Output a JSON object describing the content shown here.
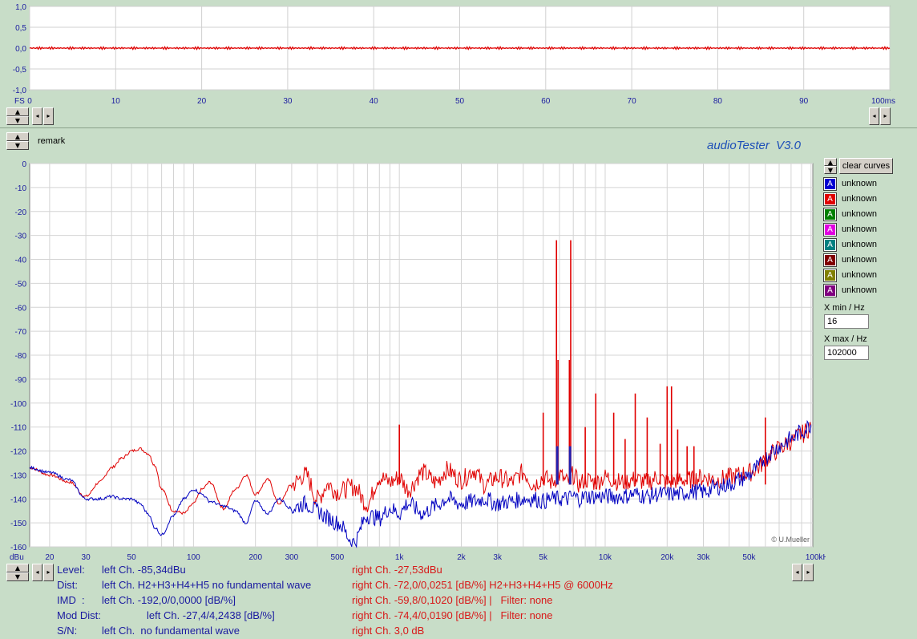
{
  "scope": {
    "y_ticks": [
      "1,0",
      "0,5",
      "0,0",
      "-0,5",
      "-1,0"
    ],
    "x_ticks": [
      "0",
      "10",
      "20",
      "30",
      "40",
      "50",
      "60",
      "70",
      "80",
      "90",
      "100ms"
    ],
    "unit_label": "FS"
  },
  "remark_label": "remark",
  "app_title": "audioTester  V3.0",
  "clear_curves_label": "clear curves",
  "legend": [
    {
      "name": "unknown",
      "color": "#0000d0"
    },
    {
      "name": "unknown",
      "color": "#e00000"
    },
    {
      "name": "unknown",
      "color": "#008000"
    },
    {
      "name": "unknown",
      "color": "#e000e0"
    },
    {
      "name": "unknown",
      "color": "#008080"
    },
    {
      "name": "unknown",
      "color": "#800000"
    },
    {
      "name": "unknown",
      "color": "#808000"
    },
    {
      "name": "unknown",
      "color": "#800080"
    }
  ],
  "legend_glyph": "A",
  "xmin_label": "X min / Hz",
  "xmin_value": "16",
  "xmax_label": "X max / Hz",
  "xmax_value": "102000",
  "copyright": "© U.Mueller",
  "stats": {
    "level_label": "Level:",
    "level_left": "left Ch. -85,34dBu",
    "level_right": "right Ch. -27,53dBu",
    "dist_label": "Dist:",
    "dist_left": "left Ch. H2+H3+H4+H5 no fundamental wave",
    "dist_right": "right Ch. -72,0/0,0251 [dB/%] H2+H3+H4+H5 @ 6000Hz",
    "imd_label": "IMD  :",
    "imd_left": "left Ch. -192,0/0,0000 [dB/%]",
    "imd_right": "right Ch. -59,8/0,1020 [dB/%] |   Filter: none",
    "mod_label": "Mod Dist:",
    "mod_left": "left Ch. -27,4/4,2438 [dB/%]",
    "mod_right": "right Ch. -74,4/0,0190 [dB/%] |   Filter: none",
    "sn_label": "S/N:",
    "sn_left": "left Ch.  no fundamental wave",
    "sn_right": "right Ch. 3,0 dB"
  },
  "chart_data": [
    {
      "type": "line",
      "title": "",
      "xlabel": "",
      "ylabel": "FS",
      "xlim": [
        0,
        100
      ],
      "ylim": [
        -1.0,
        1.0
      ],
      "x_unit": "ms",
      "grid": true,
      "series": [
        {
          "color": "#e00000",
          "x": [
            0,
            100
          ],
          "values": [
            0.0,
            0.0
          ],
          "amplitude": 0.03
        }
      ]
    },
    {
      "type": "line",
      "title": "",
      "xlabel": "kHz",
      "ylabel": "dBu",
      "x_scale": "log",
      "xlim": [
        16,
        102000
      ],
      "ylim": [
        -160,
        0
      ],
      "y_ticks": [
        0,
        -10,
        -20,
        -30,
        -40,
        -50,
        -60,
        -70,
        -80,
        -90,
        -100,
        -110,
        -120,
        -130,
        -140,
        -150,
        -160
      ],
      "x_tick_labels": [
        "20",
        "30",
        "50",
        "100",
        "200",
        "300",
        "500",
        "1k",
        "2k",
        "3k",
        "5k",
        "10k",
        "20k",
        "30k",
        "50k",
        "100kHz"
      ],
      "x_tick_values": [
        20,
        30,
        50,
        100,
        200,
        300,
        500,
        1000,
        2000,
        3000,
        5000,
        10000,
        20000,
        30000,
        50000,
        100000
      ],
      "grid": true,
      "series": [
        {
          "color": "#e00000",
          "x": [
            16,
            20,
            25,
            30,
            35,
            40,
            45,
            50,
            55,
            60,
            65,
            70,
            80,
            90,
            100,
            110,
            120,
            140,
            160,
            180,
            200,
            230,
            260,
            300,
            350,
            400,
            450,
            500,
            600,
            700,
            800,
            900,
            1000,
            1100,
            1300,
            1500,
            1700,
            2000,
            2300,
            2600,
            3000,
            3500,
            4000,
            4500,
            5000,
            5500,
            6000,
            6500,
            7000,
            7500,
            8000,
            9000,
            10000,
            12000,
            14000,
            16000,
            18000,
            20000,
            23000,
            26000,
            30000,
            35000,
            40000,
            45000,
            50000,
            55000,
            60000,
            65000,
            70000,
            80000,
            90000,
            100000
          ],
          "values": [
            -127,
            -130,
            -133,
            -139,
            -133,
            -127,
            -123,
            -120,
            -119,
            -121,
            -126,
            -136,
            -145,
            -146,
            -142,
            -136,
            -133,
            -144,
            -136,
            -130,
            -138,
            -132,
            -142,
            -134,
            -130,
            -140,
            -134,
            -137,
            -135,
            -142,
            -131,
            -133,
            -131,
            -136,
            -129,
            -133,
            -128,
            -132,
            -128,
            -134,
            -131,
            -133,
            -129,
            -134,
            -131,
            -133,
            -130,
            -133,
            -130,
            -134,
            -132,
            -133,
            -131,
            -133,
            -132,
            -133,
            -131,
            -133,
            -132,
            -132,
            -131,
            -132,
            -131,
            -130,
            -129,
            -127,
            -124,
            -121,
            -119,
            -116,
            -113,
            -110
          ]
        },
        {
          "color": "#0000c0",
          "x": [
            16,
            20,
            25,
            30,
            35,
            40,
            45,
            50,
            55,
            60,
            65,
            70,
            80,
            90,
            100,
            110,
            120,
            140,
            160,
            180,
            200,
            230,
            260,
            300,
            350,
            400,
            450,
            500,
            600,
            700,
            800,
            900,
            1000,
            1100,
            1300,
            1500,
            1700,
            2000,
            2300,
            2600,
            3000,
            3500,
            4000,
            4500,
            5000,
            5500,
            6000,
            6500,
            7000,
            7500,
            8000,
            9000,
            10000,
            12000,
            14000,
            16000,
            18000,
            20000,
            23000,
            26000,
            30000,
            35000,
            40000,
            45000,
            50000,
            55000,
            60000,
            65000,
            70000,
            80000,
            90000,
            100000
          ],
          "values": [
            -127,
            -129,
            -132,
            -140,
            -140,
            -139,
            -140,
            -140,
            -142,
            -146,
            -152,
            -155,
            -147,
            -140,
            -136,
            -138,
            -141,
            -143,
            -145,
            -150,
            -141,
            -146,
            -140,
            -144,
            -142,
            -145,
            -148,
            -150,
            -158,
            -147,
            -148,
            -144,
            -146,
            -142,
            -146,
            -143,
            -140,
            -142,
            -141,
            -140,
            -142,
            -141,
            -140,
            -140,
            -141,
            -140,
            -140,
            -140,
            -139,
            -140,
            -139,
            -139,
            -139,
            -139,
            -138,
            -139,
            -138,
            -138,
            -138,
            -137,
            -137,
            -135,
            -134,
            -132,
            -130,
            -127,
            -123,
            -120,
            -118,
            -115,
            -112,
            -109
          ]
        }
      ],
      "spikes": [
        {
          "x": 1000,
          "value": -109,
          "color": "#e00000"
        },
        {
          "x": 5000,
          "value": -104,
          "color": "#e00000"
        },
        {
          "x": 5800,
          "value": -32,
          "color": "#e00000"
        },
        {
          "x": 6800,
          "value": -32,
          "color": "#e00000"
        },
        {
          "x": 5900,
          "value": -82,
          "color": "#e00000"
        },
        {
          "x": 6700,
          "value": -82,
          "color": "#e00000"
        },
        {
          "x": 5850,
          "value": -118,
          "color": "#2020b0"
        },
        {
          "x": 6750,
          "value": -118,
          "color": "#2020b0"
        },
        {
          "x": 8000,
          "value": -110,
          "color": "#e00000"
        },
        {
          "x": 9000,
          "value": -96,
          "color": "#e00000"
        },
        {
          "x": 11000,
          "value": -104,
          "color": "#e00000"
        },
        {
          "x": 12500,
          "value": -115,
          "color": "#e00000"
        },
        {
          "x": 14000,
          "value": -96,
          "color": "#e00000"
        },
        {
          "x": 16000,
          "value": -106,
          "color": "#e00000"
        },
        {
          "x": 18500,
          "value": -117,
          "color": "#e00000"
        },
        {
          "x": 20000,
          "value": -93,
          "color": "#e00000"
        },
        {
          "x": 21000,
          "value": -93,
          "color": "#e00000"
        },
        {
          "x": 22500,
          "value": -111,
          "color": "#e00000"
        },
        {
          "x": 25000,
          "value": -118,
          "color": "#e00000"
        },
        {
          "x": 27000,
          "value": -118,
          "color": "#e00000"
        },
        {
          "x": 60000,
          "value": -106,
          "color": "#e00000"
        }
      ]
    }
  ]
}
